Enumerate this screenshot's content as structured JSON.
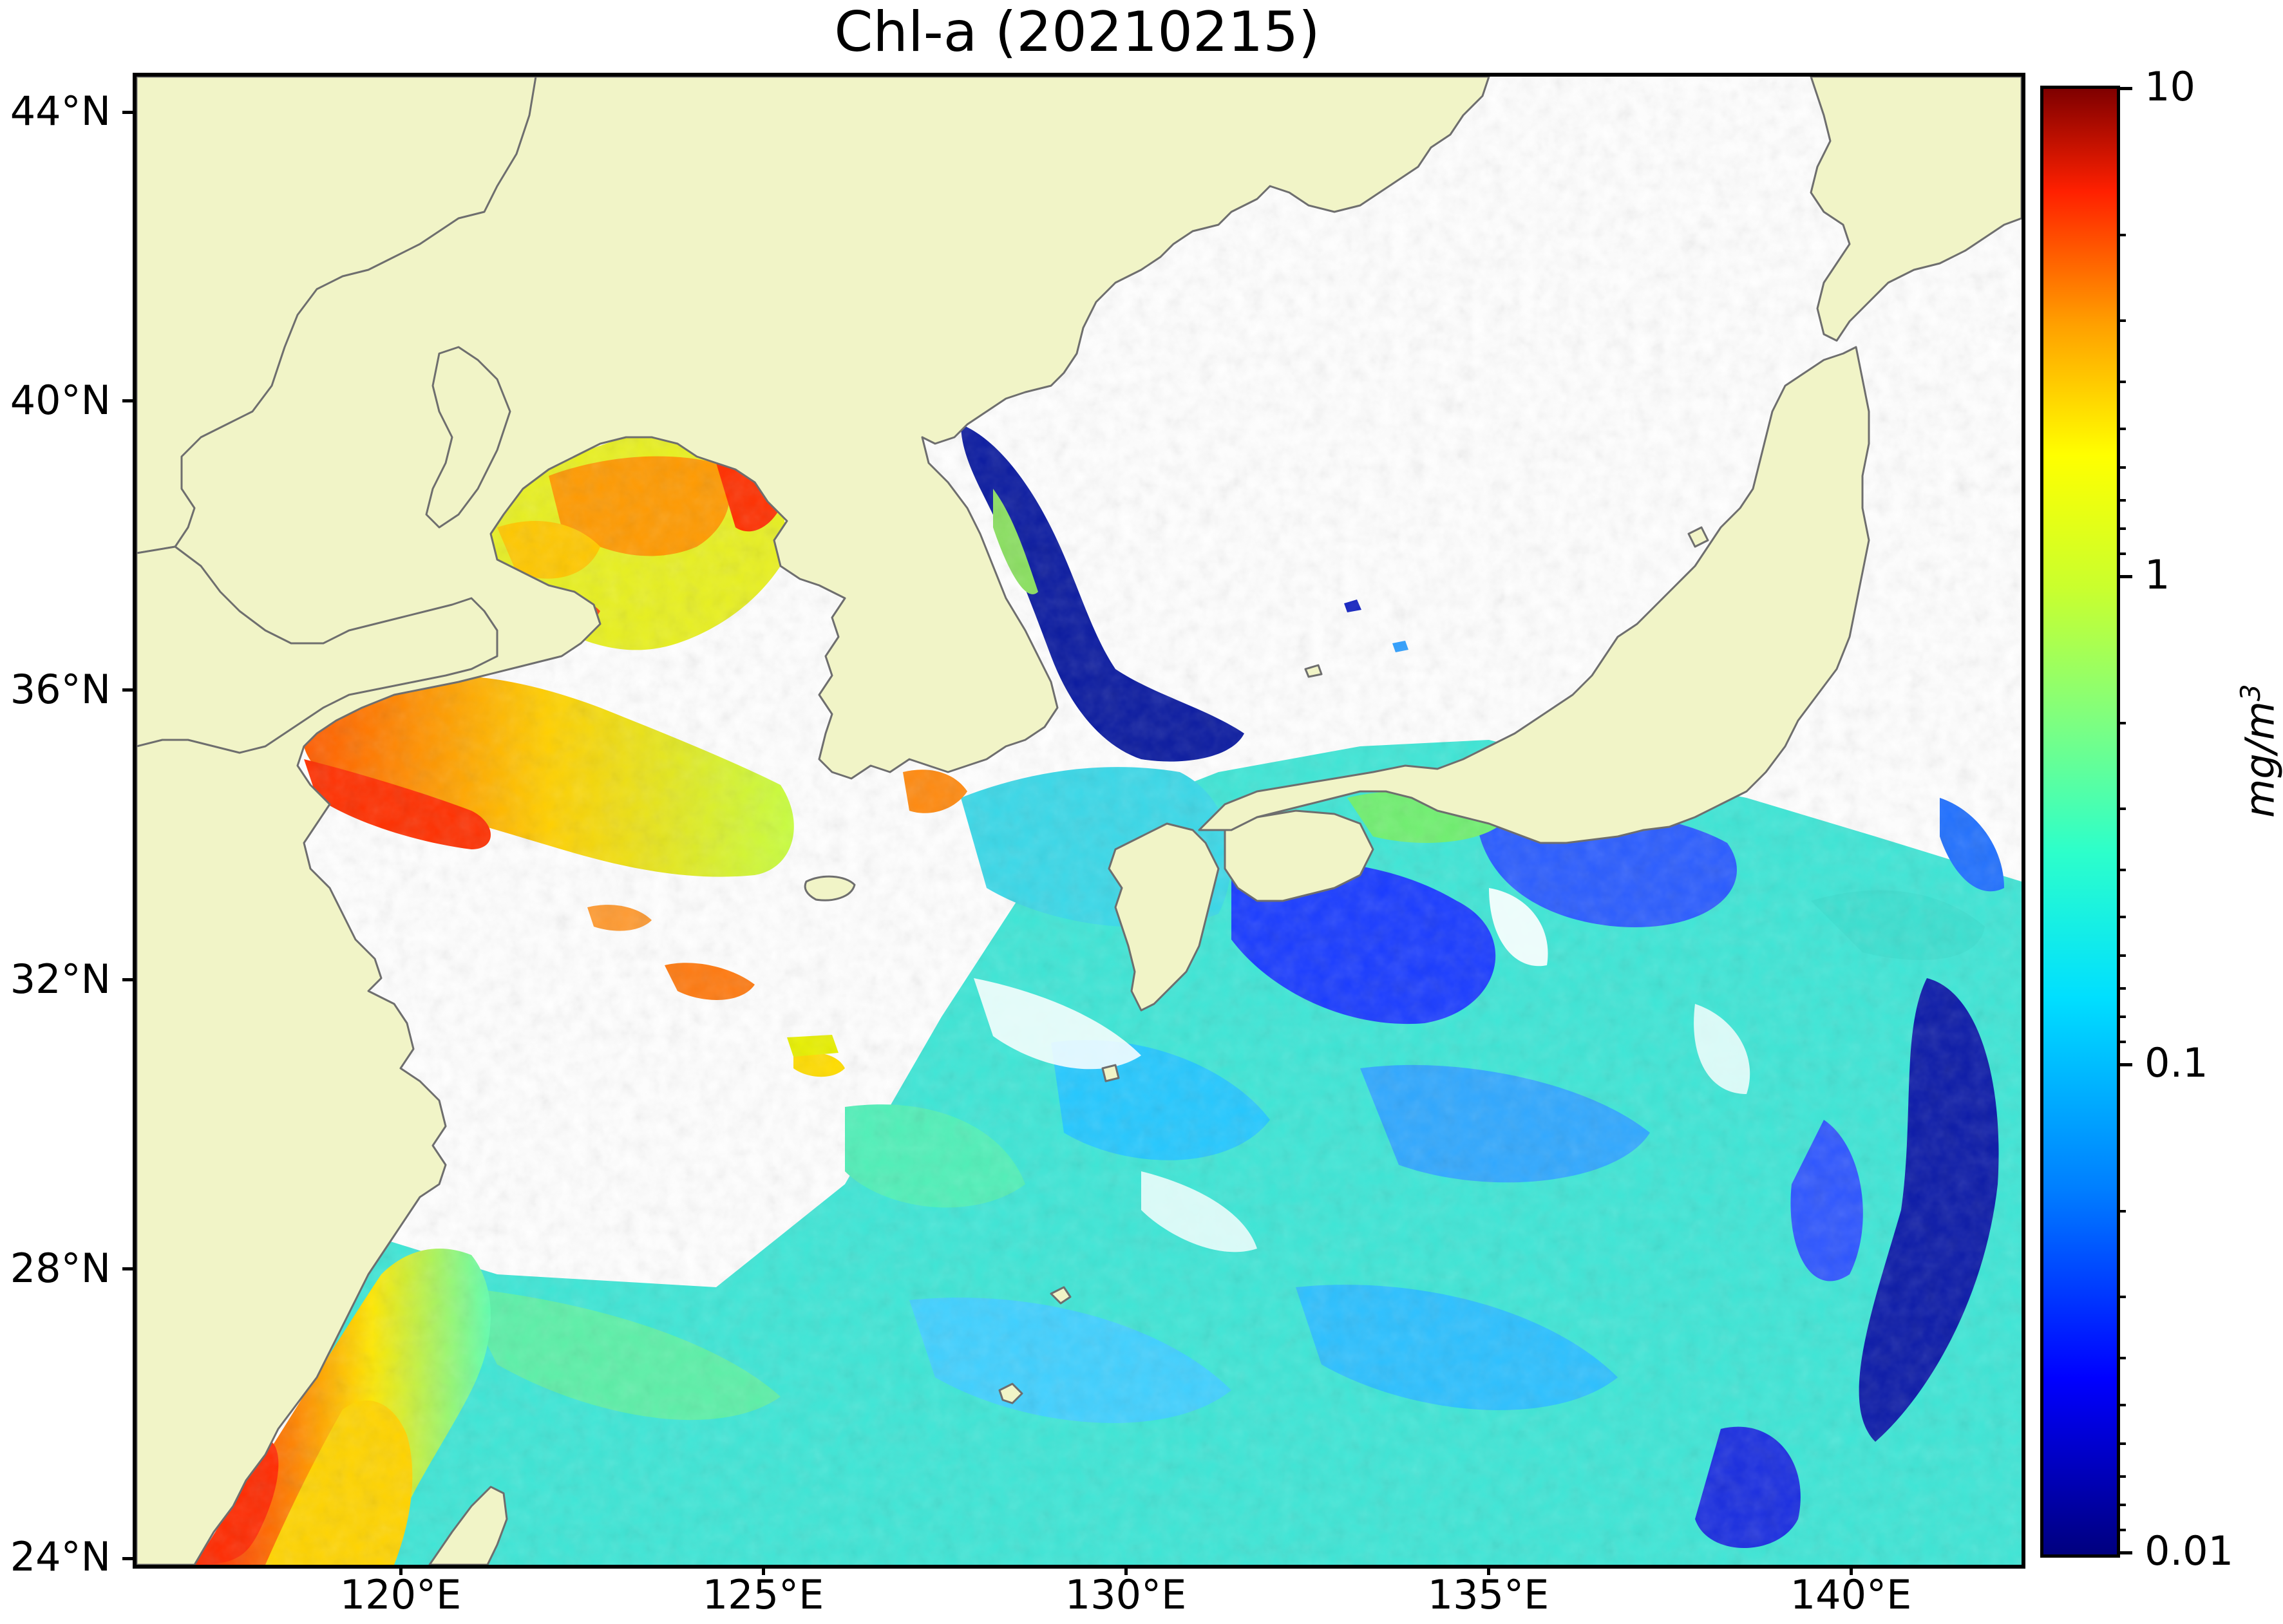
{
  "title": "Chl-a (20210215)",
  "map": {
    "lon_range": [
      117,
      143
    ],
    "lat_range": [
      24,
      44.5
    ],
    "projection": "plate-carree",
    "colors": {
      "land": "#f1f4c7",
      "coastline": "#6e6e6e",
      "no_data": "#ffffff"
    },
    "lat_ticks": [
      "44°N",
      "40°N",
      "36°N",
      "32°N",
      "28°N",
      "24°N"
    ],
    "lon_ticks": [
      "120°E",
      "125°E",
      "130°E",
      "135°E",
      "140°E"
    ]
  },
  "colorbar": {
    "scale": "log",
    "range": [
      0.01,
      10
    ],
    "colormap": "jet",
    "tick_labels": [
      "10",
      "1",
      "0.1",
      "0.01"
    ],
    "unit_base": "mg/m",
    "unit_exp": "3"
  }
}
